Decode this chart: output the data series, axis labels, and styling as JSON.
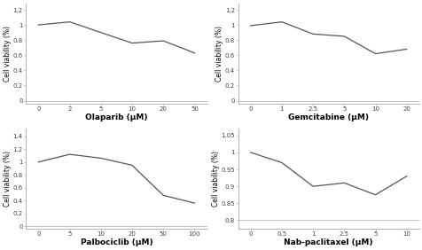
{
  "subplots": [
    {
      "xlabel": "Olaparib (μM)",
      "ylabel": "Cell viability (%)",
      "xtick_labels": [
        "0",
        "2",
        "5",
        "10",
        "20",
        "50"
      ],
      "ytick_vals": [
        0,
        0.2,
        0.4,
        0.6,
        0.8,
        1.0,
        1.2
      ],
      "ytick_labels": [
        "0",
        "0.2",
        "0.4",
        "0.6",
        "0.8",
        "1",
        "1.2"
      ],
      "ylim": [
        -0.04,
        1.28
      ],
      "y": [
        1.0,
        1.04,
        0.9,
        0.76,
        0.79,
        0.63
      ]
    },
    {
      "xlabel": "Gemcitabine (μM)",
      "ylabel": "Cell viability (%)",
      "xtick_labels": [
        "0",
        "1",
        "2.5",
        "5",
        "10",
        "20"
      ],
      "ytick_vals": [
        0,
        0.2,
        0.4,
        0.6,
        0.8,
        1.0,
        1.2
      ],
      "ytick_labels": [
        "0",
        "0.2",
        "0.4",
        "0.6",
        "0.8",
        "1",
        "1.2"
      ],
      "ylim": [
        -0.04,
        1.28
      ],
      "y": [
        0.99,
        1.04,
        0.88,
        0.85,
        0.62,
        0.68
      ]
    },
    {
      "xlabel": "Palbociclib (μM)",
      "ylabel": "Cell viability (%)",
      "xtick_labels": [
        "0",
        "5",
        "10",
        "20",
        "50",
        "100"
      ],
      "ytick_vals": [
        0,
        0.2,
        0.4,
        0.6,
        0.8,
        1.0,
        1.2,
        1.4
      ],
      "ytick_labels": [
        "0",
        "0.2",
        "0.4",
        "0.6",
        "0.8",
        "1",
        "1.2",
        "1.4"
      ],
      "ylim": [
        -0.04,
        1.52
      ],
      "y": [
        1.0,
        1.12,
        1.06,
        0.95,
        0.48,
        0.36
      ]
    },
    {
      "xlabel": "Nab-paclitaxel (μM)",
      "ylabel": "Cell viability (%)",
      "xtick_labels": [
        "0",
        "0.5",
        "1",
        "2.5",
        "5",
        "10"
      ],
      "ytick_vals": [
        0.8,
        0.85,
        0.9,
        0.95,
        1.0,
        1.05
      ],
      "ytick_labels": [
        "0.8",
        "0.85",
        "0.9",
        "0.95",
        "1",
        "1.05"
      ],
      "ylim": [
        0.775,
        1.07
      ],
      "y": [
        1.0,
        0.97,
        0.9,
        0.91,
        0.875,
        0.93
      ]
    }
  ],
  "line_color": "#555555",
  "line_width": 0.9,
  "bg_color": "#ffffff",
  "tick_fontsize": 5.0,
  "ylabel_fontsize": 5.5,
  "xlabel_fontsize": 6.5,
  "spine_color": "#aaaaaa",
  "xlabel_bold": true
}
